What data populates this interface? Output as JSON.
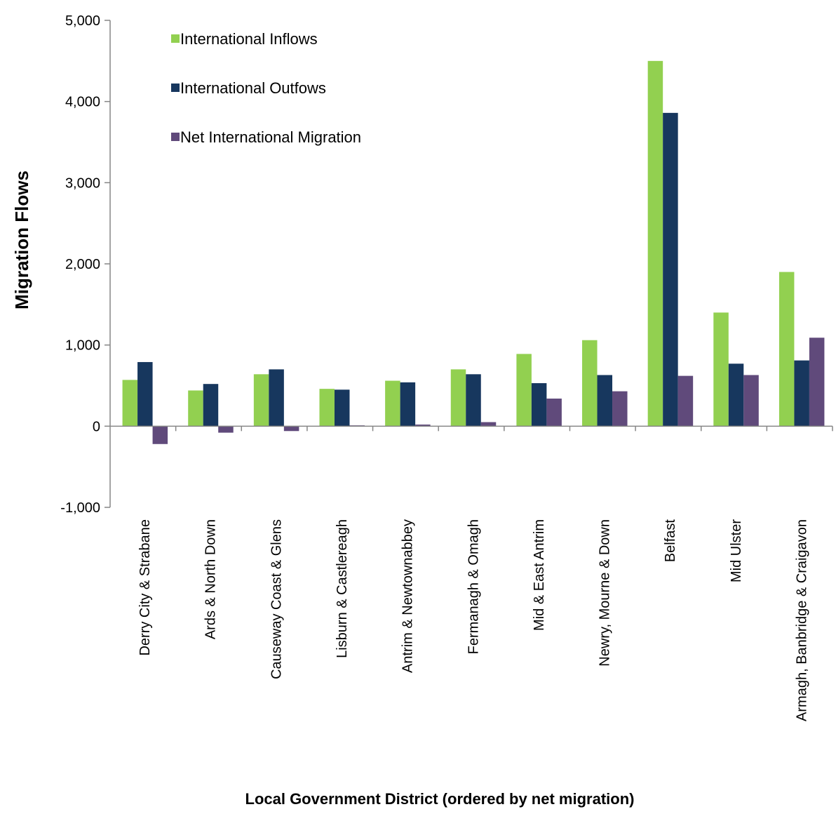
{
  "chart_data": {
    "type": "bar",
    "title": "",
    "xlabel": "Local Government District (ordered by net migration)",
    "ylabel": "Migration Flows",
    "ylim": [
      -1000,
      5000
    ],
    "yticks": [
      -1000,
      0,
      1000,
      2000,
      3000,
      4000,
      5000
    ],
    "ytick_labels": [
      "-1,000",
      "0",
      "1,000",
      "2,000",
      "3,000",
      "4,000",
      "5,000"
    ],
    "grid": false,
    "legend_position": "top-left",
    "categories": [
      "Derry City & Strabane",
      "Ards & North Down",
      "Causeway Coast & Glens",
      "Lisburn & Castlereagh",
      "Antrim & Newtownabbey",
      "Fermanagh & Omagh",
      "Mid & East Antrim",
      "Newry, Mourne & Down",
      "Belfast",
      "Mid Ulster",
      "Armagh, Banbridge & Craigavon"
    ],
    "series": [
      {
        "name": "International Inflows",
        "color": "#92d050",
        "values": [
          570,
          440,
          640,
          460,
          560,
          700,
          890,
          1060,
          4500,
          1400,
          1900
        ]
      },
      {
        "name": "International Outfows",
        "color": "#17375e",
        "values": [
          790,
          520,
          700,
          450,
          540,
          640,
          530,
          630,
          3860,
          770,
          810
        ]
      },
      {
        "name": "Net International Migration",
        "color": "#604a7b",
        "values": [
          -220,
          -80,
          -60,
          10,
          20,
          50,
          340,
          430,
          620,
          630,
          1090
        ]
      }
    ]
  }
}
